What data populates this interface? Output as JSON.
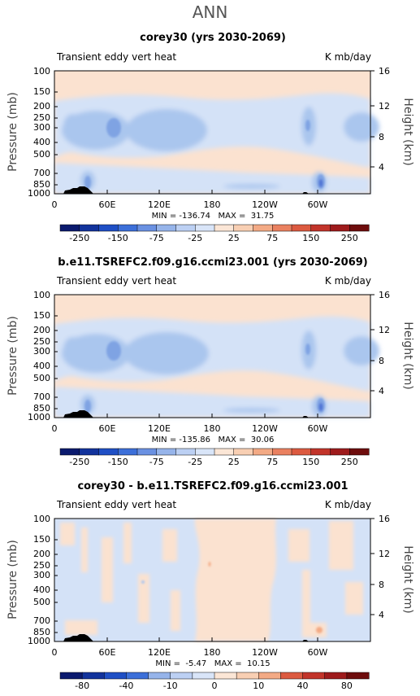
{
  "page": {
    "title": "ANN"
  },
  "shared": {
    "variable_label": "Transient eddy vert heat",
    "units_label": "K mb/day",
    "ylabel": "Pressure (mb)",
    "ylabel_right": "Height (km)",
    "pressure_ticks": [
      "100",
      "150",
      "200",
      "250",
      "300",
      "400",
      "500",
      "700",
      "850",
      "1000"
    ],
    "height_ticks": [
      "16",
      "12",
      "8",
      "4"
    ],
    "lon_ticks": [
      "0",
      "60E",
      "120E",
      "180",
      "120W",
      "60W"
    ]
  },
  "chart_data": [
    {
      "type": "heatmap",
      "title": "corey30 (yrs 2030-2069)",
      "stats": "MIN = -136.74   MAX =  31.75",
      "min": -136.74,
      "max": 31.75,
      "x_axis": "longitude",
      "y_axis": "pressure",
      "y_scale": "log-pressure",
      "colorbar_ticks": [
        "-250",
        "-150",
        "-75",
        "-25",
        "25",
        "75",
        "150",
        "250"
      ],
      "colorbar_levels": [
        -300,
        -250,
        -200,
        -150,
        -100,
        -75,
        -50,
        -25,
        0,
        25,
        50,
        75,
        100,
        150,
        200,
        250,
        300
      ]
    },
    {
      "type": "heatmap",
      "title": "b.e11.TSREFC2.f09.g16.ccmi23.001 (yrs 2030-2069)",
      "stats": "MIN = -135.86   MAX =  30.06",
      "min": -135.86,
      "max": 30.06,
      "x_axis": "longitude",
      "y_axis": "pressure",
      "y_scale": "log-pressure",
      "colorbar_ticks": [
        "-250",
        "-150",
        "-75",
        "-25",
        "25",
        "75",
        "150",
        "250"
      ],
      "colorbar_levels": [
        -300,
        -250,
        -200,
        -150,
        -100,
        -75,
        -50,
        -25,
        0,
        25,
        50,
        75,
        100,
        150,
        200,
        250,
        300
      ]
    },
    {
      "type": "heatmap",
      "title": "corey30 - b.e11.TSREFC2.f09.g16.ccmi23.001",
      "stats": "MIN =  -5.47   MAX =  10.15",
      "min": -5.47,
      "max": 10.15,
      "x_axis": "longitude",
      "y_axis": "pressure",
      "y_scale": "log-pressure",
      "colorbar_ticks": [
        "-80",
        "-40",
        "-10",
        "0",
        "10",
        "40",
        "80"
      ],
      "colorbar_levels": [
        -100,
        -80,
        -60,
        -40,
        -20,
        -10,
        -5,
        0,
        5,
        10,
        20,
        40,
        60,
        80,
        100
      ]
    }
  ],
  "colors": {
    "neutral_neg": "#d4e2f7",
    "neutral_pos": "#fbe2d0",
    "neg1": "#aac6ee",
    "neg2": "#7fa3e3",
    "neg3": "#4f74d6",
    "topography": "#000000",
    "colorbar_scale": [
      "#0b1a6e",
      "#12339c",
      "#1f4fc5",
      "#3c6fd9",
      "#6a91e2",
      "#96b4ea",
      "#bcd0f3",
      "#d9e5f8",
      "#fbe6d6",
      "#f8cfb3",
      "#f3aa85",
      "#ea8160",
      "#dc5a40",
      "#c2342a",
      "#9e1b1c",
      "#6e0d0d"
    ]
  }
}
